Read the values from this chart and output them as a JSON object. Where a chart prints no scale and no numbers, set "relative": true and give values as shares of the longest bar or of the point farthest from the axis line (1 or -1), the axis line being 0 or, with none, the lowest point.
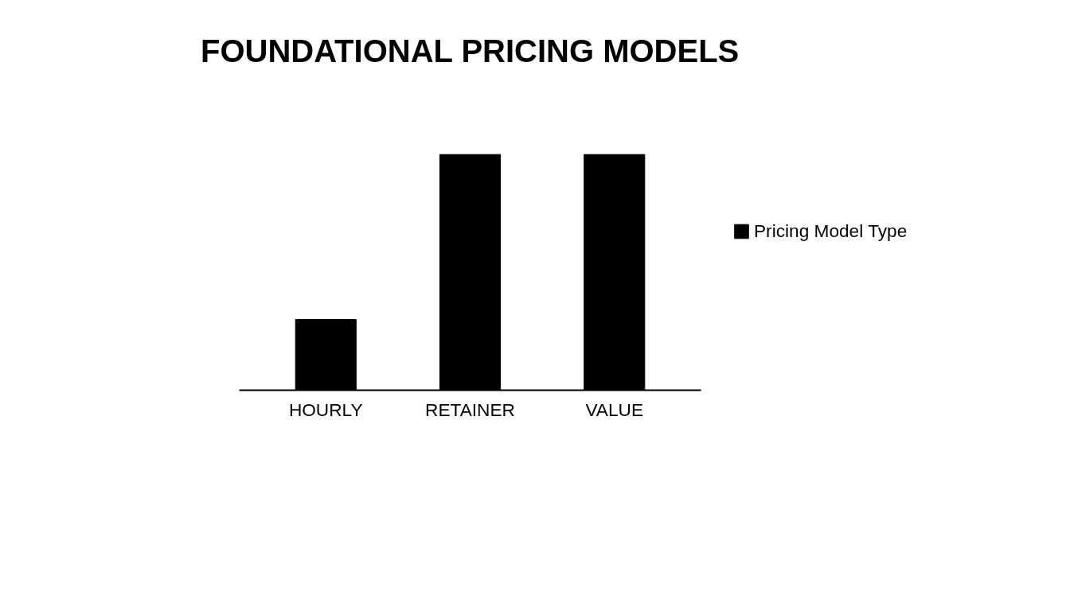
{
  "chart_data": {
    "type": "bar",
    "title": "FOUNDATIONAL PRICING MODELS",
    "categories": [
      "HOURLY",
      "RETAINER",
      "VALUE"
    ],
    "series": [
      {
        "name": "Pricing Model Type",
        "color": "#000000",
        "values": [
          0.3,
          1,
          1
        ]
      }
    ],
    "relative": true,
    "grid": false,
    "legend": "right"
  }
}
